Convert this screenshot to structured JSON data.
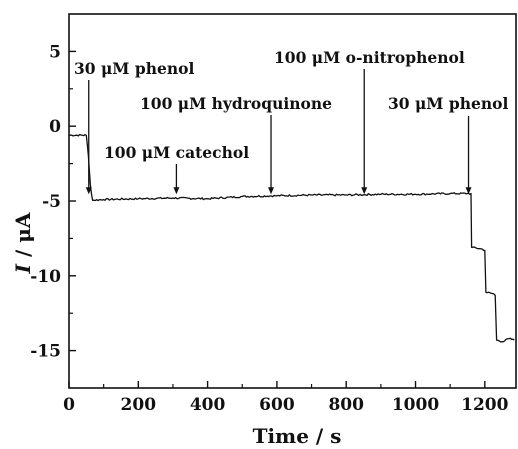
{
  "chart_data": {
    "type": "line",
    "title": "",
    "xlabel": "Time / s",
    "ylabel_italic": "I",
    "ylabel_rest": " / μA",
    "xlim": [
      0,
      1290
    ],
    "ylim": [
      -17.5,
      7.5
    ],
    "xticks": [
      0,
      200,
      400,
      600,
      800,
      1000,
      1200
    ],
    "xtick_labels": [
      "0",
      "200",
      "400",
      "600",
      "800",
      "1000",
      "1200"
    ],
    "yticks": [
      5,
      0,
      -5,
      -10,
      -15
    ],
    "ytick_labels": [
      "5",
      "0",
      "-5",
      "-10",
      "-15"
    ],
    "grid": false,
    "series": [
      {
        "points": [
          [
            0,
            -0.6
          ],
          [
            50,
            -0.6
          ],
          [
            56,
            -2.0
          ],
          [
            62,
            -4.0
          ],
          [
            68,
            -4.95
          ],
          [
            100,
            -4.9
          ],
          [
            200,
            -4.85
          ],
          [
            300,
            -4.8
          ],
          [
            400,
            -4.85
          ],
          [
            500,
            -4.7
          ],
          [
            600,
            -4.65
          ],
          [
            700,
            -4.6
          ],
          [
            800,
            -4.6
          ],
          [
            900,
            -4.55
          ],
          [
            1000,
            -4.55
          ],
          [
            1100,
            -4.5
          ],
          [
            1150,
            -4.5
          ],
          [
            1160,
            -4.5
          ],
          [
            1162,
            -8.1
          ],
          [
            1190,
            -8.2
          ],
          [
            1200,
            -8.3
          ],
          [
            1203,
            -11.1
          ],
          [
            1225,
            -11.2
          ],
          [
            1230,
            -11.3
          ],
          [
            1234,
            -14.3
          ],
          [
            1250,
            -14.4
          ],
          [
            1270,
            -14.2
          ],
          [
            1285,
            -14.3
          ]
        ]
      }
    ],
    "annotations": [
      {
        "text": "30 μM phenol",
        "arrow_x": 57
      },
      {
        "text": "100 μM catechol",
        "arrow_x": 310
      },
      {
        "text": "100 μM hydroquinone",
        "arrow_x": 583
      },
      {
        "text": "100 μM o-nitrophenol",
        "arrow_x": 852
      },
      {
        "text": "30 μM phenol",
        "arrow_x": 1153
      }
    ]
  }
}
